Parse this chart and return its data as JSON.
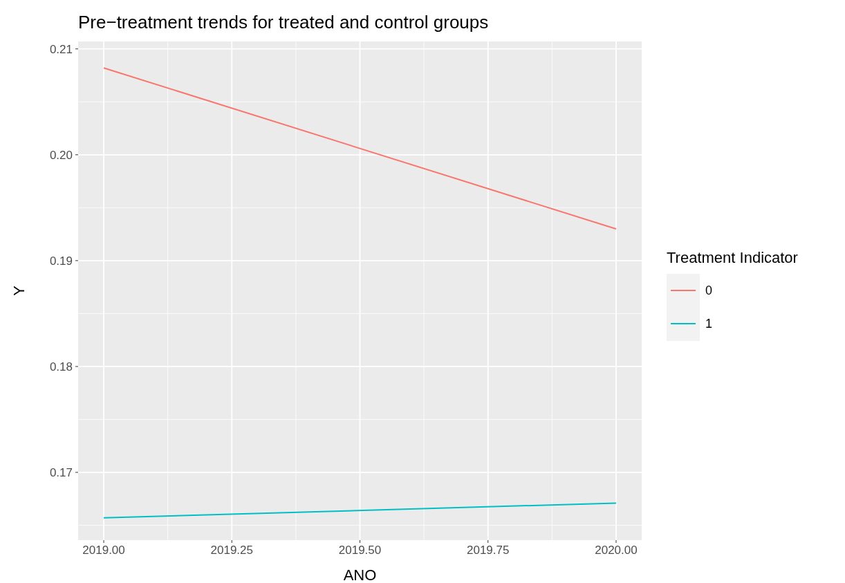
{
  "chart_data": {
    "type": "line",
    "title": "Pre−treatment trends for treated and control groups",
    "xlabel": "ANO",
    "ylabel": "Y",
    "legend_title": "Treatment Indicator",
    "x": [
      2019,
      2020
    ],
    "series": [
      {
        "name": "0",
        "color": "#f8766d",
        "values": [
          0.2082,
          0.193
        ]
      },
      {
        "name": "1",
        "color": "#00bfc4",
        "values": [
          0.1657,
          0.1671
        ]
      }
    ],
    "xlim": [
      2018.95,
      2020.05
    ],
    "ylim": [
      0.1636,
      0.2107
    ],
    "xticks": [
      {
        "value": 2019,
        "label": "2019.00"
      },
      {
        "value": 2019.25,
        "label": "2019.25"
      },
      {
        "value": 2019.5,
        "label": "2019.50"
      },
      {
        "value": 2019.75,
        "label": "2019.75"
      },
      {
        "value": 2020,
        "label": "2020.00"
      }
    ],
    "yticks": [
      {
        "value": 0.17,
        "label": "0.17"
      },
      {
        "value": 0.18,
        "label": "0.18"
      },
      {
        "value": 0.19,
        "label": "0.19"
      },
      {
        "value": 0.2,
        "label": "0.20"
      },
      {
        "value": 0.21,
        "label": "0.21"
      }
    ],
    "grid": true,
    "legend": "right"
  }
}
